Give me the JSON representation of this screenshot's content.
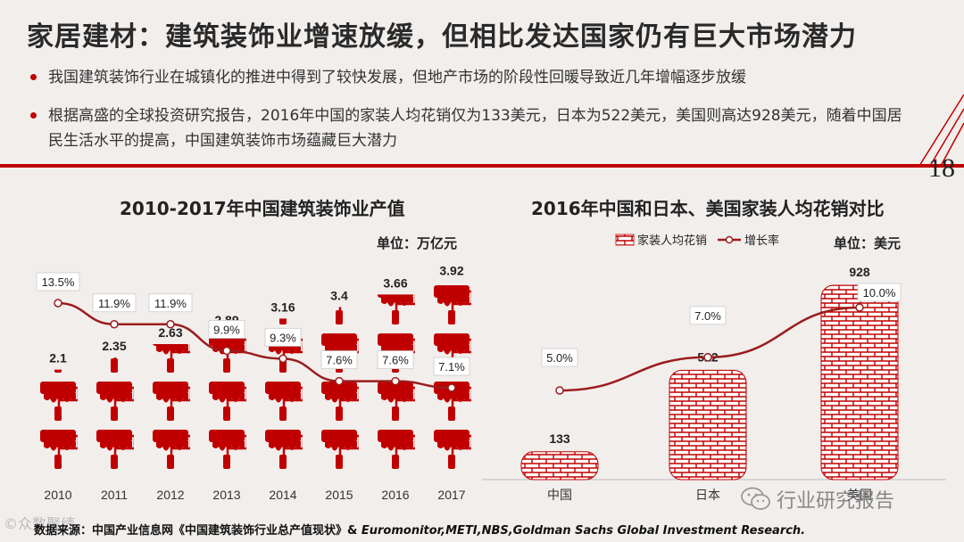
{
  "slide": {
    "title": "家居建材：建筑装饰业增速放缓，但相比发达国家仍有巨大市场潜力",
    "bullets": [
      "我国建筑装饰行业在城镇化的推进中得到了较快发展，但地产市场的阶段性回暖导致近几年增幅逐步放缓",
      "根据高盛的全球投资研究报告，2016年中国的家装人均花销仅为133美元，日本为522美元，美国则高达928美元，随着中国居民生活水平的提高，中国建筑装饰市场蕴藏巨大潜力"
    ],
    "page_number": "18",
    "source_prefix": "数据来源：中国产业信息网《中国建筑装饰行业总产值现状》& ",
    "source_italic": "Euromonitor,METI,NBS,Goldman Sachs Global Investment Research.",
    "watermark_left": "©众数聚绩",
    "watermark_right": "行业研究报告",
    "accent_color": "#c00000",
    "line_color": "#9b1c1c"
  },
  "chart_data": [
    {
      "type": "bar",
      "title": "2010-2017年中国建筑装饰业产值",
      "unit": "单位：万亿元",
      "categories": [
        "2010",
        "2011",
        "2012",
        "2013",
        "2014",
        "2015",
        "2016",
        "2017"
      ],
      "series": [
        {
          "values": [
            2.1,
            2.35,
            2.63,
            2.89,
            3.16,
            3.4,
            3.66,
            3.92
          ]
        },
        {
          "values": [
            13.5,
            11.9,
            11.9,
            9.9,
            9.3,
            7.6,
            7.6,
            7.1
          ],
          "labels": [
            "13.5%",
            "11.9%",
            "11.9%",
            "9.9%",
            "9.3%",
            "7.6%",
            "7.6%",
            "7.1%"
          ]
        }
      ],
      "value_labels": [
        "2.1",
        "2.35",
        "2.63",
        "2.89",
        "3.16",
        "3.4",
        "3.66",
        "3.92"
      ]
    },
    {
      "type": "bar",
      "title": "2016年中国和日本、美国家装人均花销对比",
      "unit": "单位：美元",
      "categories": [
        "中国",
        "日本",
        "美国"
      ],
      "series": [
        {
          "name": "家装人均花销",
          "values": [
            133,
            522,
            928
          ]
        },
        {
          "name": "增长率",
          "values": [
            5.0,
            7.0,
            10.0
          ],
          "labels": [
            "5.0%",
            "7.0%",
            "10.0%"
          ]
        }
      ],
      "value_labels": [
        "133",
        "522",
        "928"
      ]
    }
  ]
}
